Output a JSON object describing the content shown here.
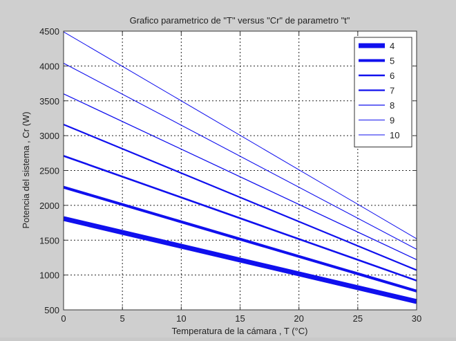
{
  "chart_data": {
    "type": "line",
    "title": "Grafico parametrico de \"T\" versus \"Cr\" de parametro \"t\"",
    "xlabel": "Temperatura de la cámara , T (°C)",
    "ylabel": "Potencia del sistema , Cr (W)",
    "xlim": [
      0,
      30
    ],
    "ylim": [
      500,
      4500
    ],
    "xticks": [
      0,
      5,
      10,
      15,
      20,
      25,
      30
    ],
    "yticks": [
      500,
      1000,
      1500,
      2000,
      2500,
      3000,
      3500,
      4000,
      4500
    ],
    "grid": true,
    "legend_position": "top-right",
    "line_color": "#1010ee",
    "x": [
      0,
      30
    ],
    "series": [
      {
        "name": "4",
        "values": [
          1810,
          620
        ]
      },
      {
        "name": "5",
        "values": [
          2260,
          770
        ]
      },
      {
        "name": "6",
        "values": [
          2710,
          920
        ]
      },
      {
        "name": "7",
        "values": [
          3160,
          1070
        ]
      },
      {
        "name": "8",
        "values": [
          3600,
          1220
        ]
      },
      {
        "name": "9",
        "values": [
          4040,
          1370
        ]
      },
      {
        "name": "10",
        "values": [
          4490,
          1520
        ]
      }
    ]
  }
}
